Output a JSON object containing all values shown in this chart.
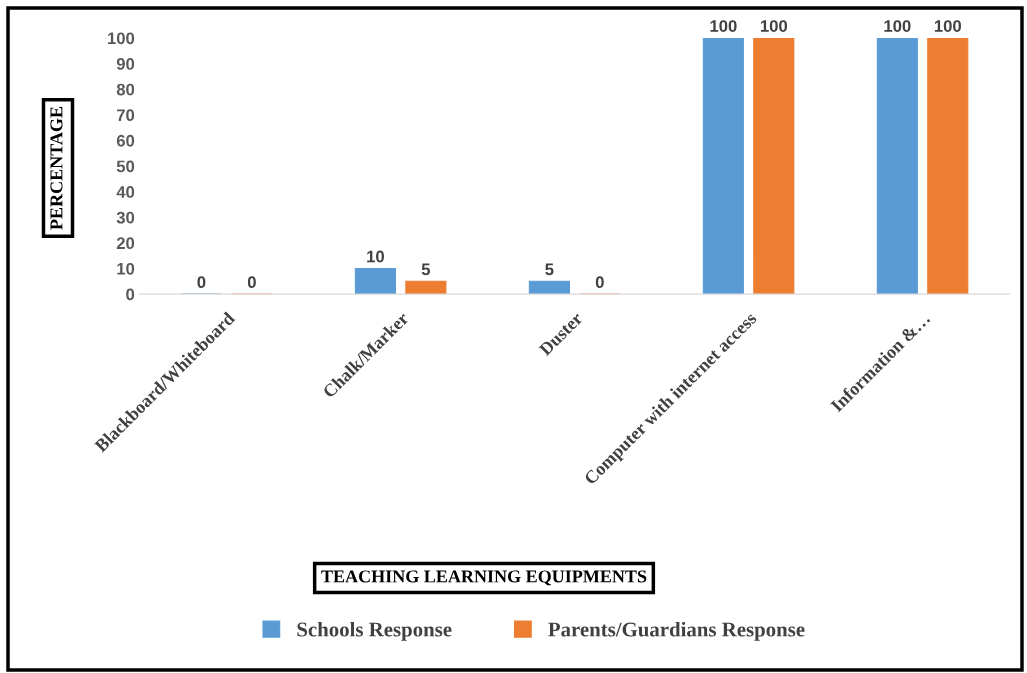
{
  "chart_data": {
    "type": "bar",
    "categories": [
      "Blackboard/Whiteboard",
      "Chalk/Marker",
      "Duster",
      "Computer with internet access",
      "Information &…"
    ],
    "series": [
      {
        "name": "Schools Response",
        "color": "#5b9bd5",
        "values": [
          0,
          10,
          5,
          100,
          100
        ]
      },
      {
        "name": "Parents/Guardians Response",
        "color": "#ed7d31",
        "values": [
          0,
          5,
          0,
          100,
          100
        ]
      }
    ],
    "xlabel": "TEACHING LEARNING EQUIPMENTS",
    "ylabel": "PERCENTAGE",
    "ylim": [
      0,
      100
    ],
    "yticks": [
      0,
      10,
      20,
      30,
      40,
      50,
      60,
      70,
      80,
      90,
      100
    ],
    "data_labels": true,
    "grid": false,
    "legend": "bottom"
  }
}
